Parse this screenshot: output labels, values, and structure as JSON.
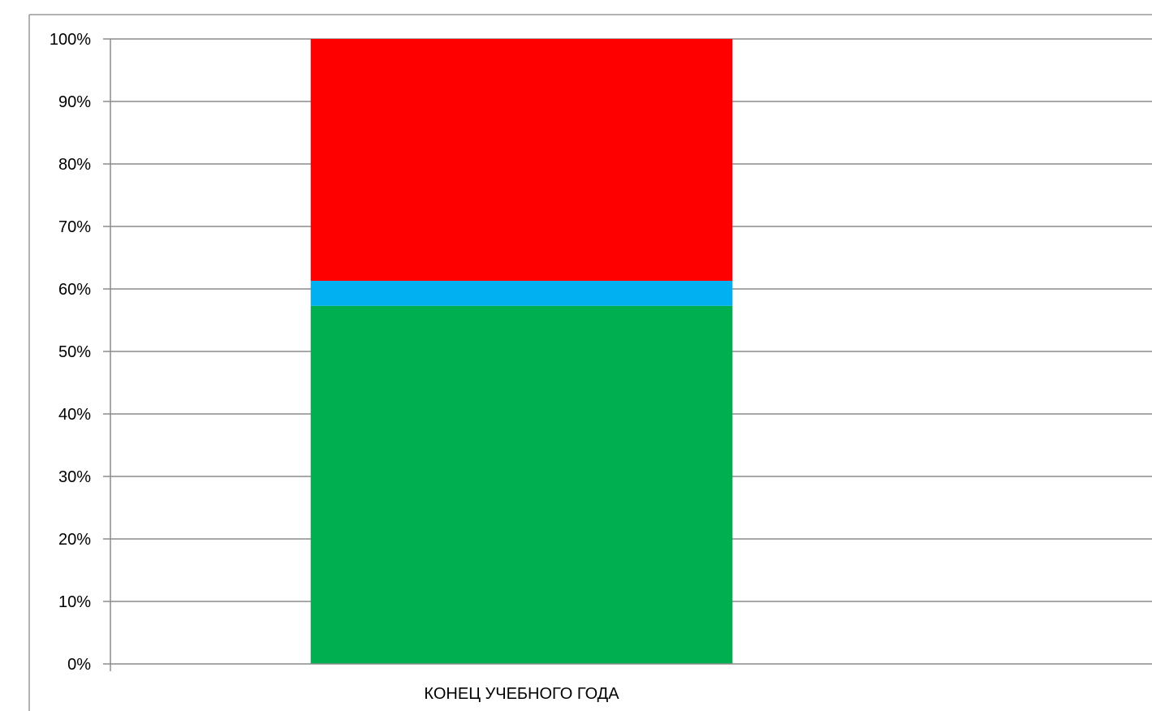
{
  "chart_data": {
    "type": "bar",
    "stacked": true,
    "percent_stacked": true,
    "categories": [
      "КОНЕЦ УЧЕБНОГО ГОДА"
    ],
    "series": [
      {
        "values": [
          57.3
        ],
        "color": "#00B050"
      },
      {
        "values": [
          4.0
        ],
        "color": "#00B0F0"
      },
      {
        "values": [
          38.7
        ],
        "color": "#FF0000"
      }
    ],
    "ylim": [
      0,
      100
    ],
    "y_ticks": [
      "0%",
      "10%",
      "20%",
      "30%",
      "40%",
      "50%",
      "60%",
      "70%",
      "80%",
      "90%",
      "100%"
    ],
    "grid": true,
    "legend": "none"
  }
}
